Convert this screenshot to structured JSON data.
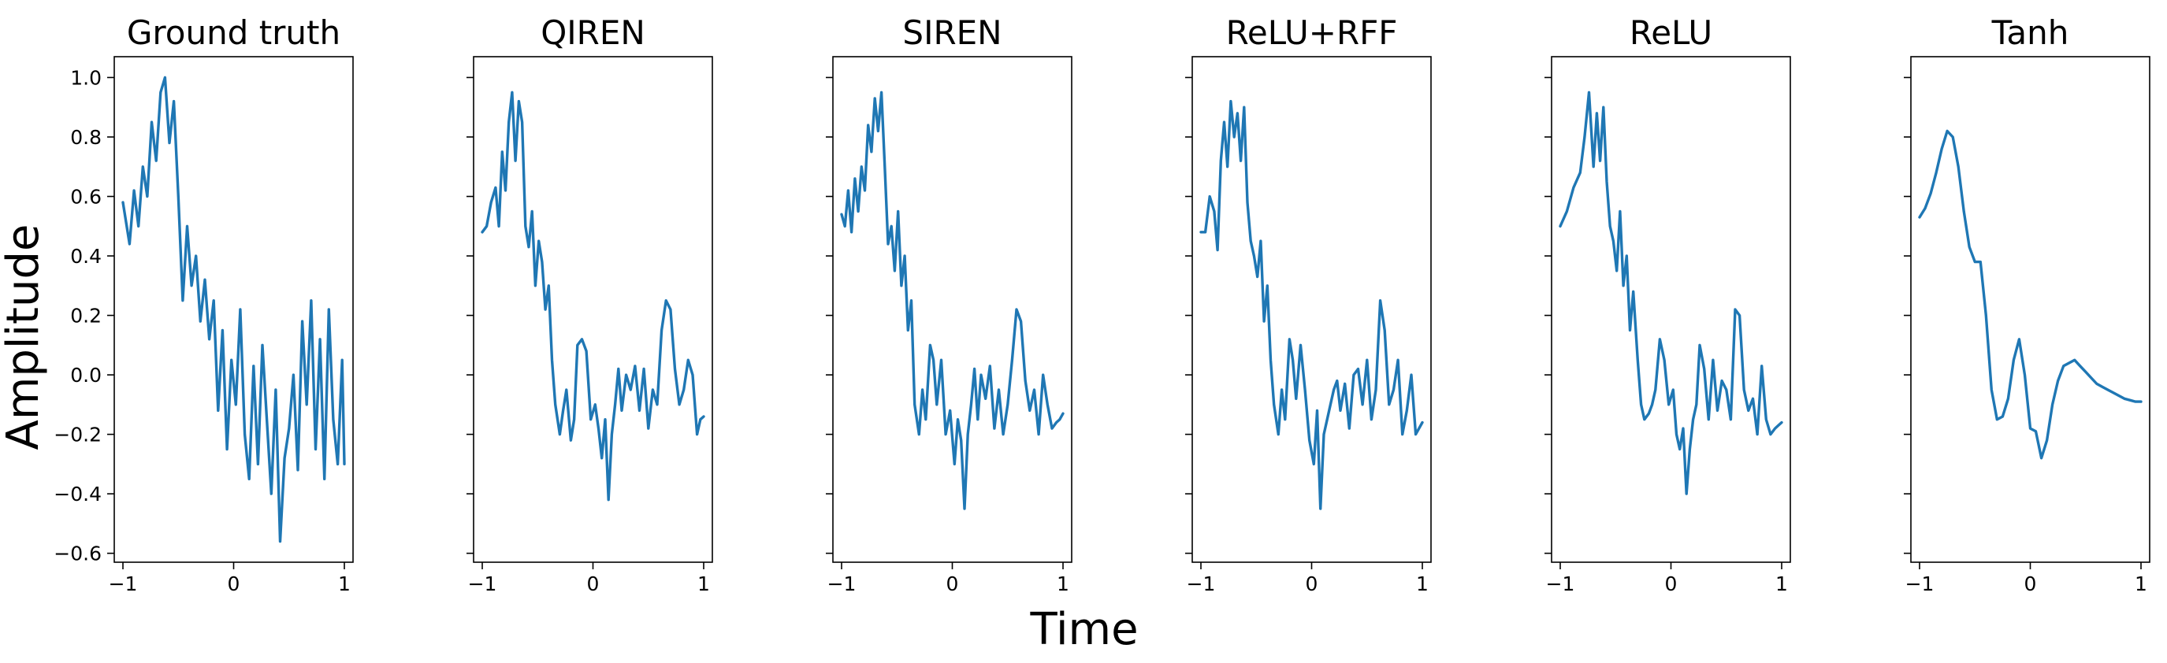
{
  "figure": {
    "xlabel": "Time",
    "ylabel": "Amplitude",
    "line_color": "#1f77b4"
  },
  "chart_data": [
    {
      "type": "line",
      "title": "Ground truth",
      "xlim": [
        -1,
        1
      ],
      "ylim": [
        -0.63,
        1.07
      ],
      "xticks": [
        -1,
        0,
        1
      ],
      "xtick_labels": [
        "−1",
        "0",
        "1"
      ],
      "yticks": [
        1.0,
        0.8,
        0.6,
        0.4,
        0.2,
        0.0,
        -0.2,
        -0.4,
        -0.6
      ],
      "ytick_labels": [
        "1.0",
        "0.8",
        "0.6",
        "0.4",
        "0.2",
        "0.0",
        "−0.2",
        "−0.4",
        "−0.6"
      ],
      "x": [
        -1.0,
        -0.94,
        -0.9,
        -0.86,
        -0.82,
        -0.78,
        -0.74,
        -0.7,
        -0.66,
        -0.62,
        -0.58,
        -0.54,
        -0.5,
        -0.46,
        -0.42,
        -0.38,
        -0.34,
        -0.3,
        -0.26,
        -0.22,
        -0.18,
        -0.14,
        -0.1,
        -0.06,
        -0.02,
        0.02,
        0.06,
        0.1,
        0.14,
        0.18,
        0.22,
        0.26,
        0.3,
        0.34,
        0.38,
        0.42,
        0.46,
        0.5,
        0.54,
        0.58,
        0.62,
        0.66,
        0.7,
        0.74,
        0.78,
        0.82,
        0.86,
        0.9,
        0.94,
        0.98,
        1.0
      ],
      "y": [
        0.58,
        0.44,
        0.62,
        0.5,
        0.7,
        0.6,
        0.85,
        0.72,
        0.95,
        1.0,
        0.78,
        0.92,
        0.6,
        0.25,
        0.5,
        0.3,
        0.4,
        0.18,
        0.32,
        0.12,
        0.25,
        -0.12,
        0.15,
        -0.25,
        0.05,
        -0.1,
        0.22,
        -0.2,
        -0.35,
        0.03,
        -0.3,
        0.1,
        -0.15,
        -0.4,
        -0.05,
        -0.56,
        -0.28,
        -0.18,
        0.0,
        -0.32,
        0.18,
        -0.1,
        0.25,
        -0.25,
        0.12,
        -0.35,
        0.22,
        -0.15,
        -0.3,
        0.05,
        -0.3
      ]
    },
    {
      "type": "line",
      "title": "QIREN",
      "xlim": [
        -1,
        1
      ],
      "ylim": [
        -0.63,
        1.07
      ],
      "xticks": [
        -1,
        0,
        1
      ],
      "xtick_labels": [
        "−1",
        "0",
        "1"
      ],
      "yticks": [
        1.0,
        0.8,
        0.6,
        0.4,
        0.2,
        0.0,
        -0.2,
        -0.4,
        -0.6
      ],
      "x": [
        -1.0,
        -0.96,
        -0.92,
        -0.88,
        -0.85,
        -0.82,
        -0.79,
        -0.76,
        -0.73,
        -0.7,
        -0.67,
        -0.64,
        -0.61,
        -0.58,
        -0.55,
        -0.52,
        -0.49,
        -0.46,
        -0.43,
        -0.4,
        -0.37,
        -0.34,
        -0.3,
        -0.27,
        -0.24,
        -0.2,
        -0.17,
        -0.14,
        -0.1,
        -0.06,
        -0.02,
        0.02,
        0.05,
        0.08,
        0.11,
        0.14,
        0.17,
        0.2,
        0.23,
        0.26,
        0.3,
        0.34,
        0.38,
        0.42,
        0.46,
        0.5,
        0.54,
        0.58,
        0.62,
        0.66,
        0.7,
        0.74,
        0.78,
        0.82,
        0.86,
        0.9,
        0.94,
        0.97,
        1.0
      ],
      "y": [
        0.48,
        0.5,
        0.58,
        0.63,
        0.5,
        0.75,
        0.62,
        0.85,
        0.95,
        0.72,
        0.92,
        0.85,
        0.5,
        0.43,
        0.55,
        0.3,
        0.45,
        0.38,
        0.22,
        0.3,
        0.05,
        -0.1,
        -0.2,
        -0.12,
        -0.05,
        -0.22,
        -0.15,
        0.1,
        0.12,
        0.08,
        -0.15,
        -0.1,
        -0.18,
        -0.28,
        -0.15,
        -0.42,
        -0.2,
        -0.1,
        0.02,
        -0.12,
        0.0,
        -0.05,
        0.03,
        -0.12,
        0.02,
        -0.18,
        -0.05,
        -0.1,
        0.15,
        0.25,
        0.22,
        0.02,
        -0.1,
        -0.05,
        0.05,
        0.0,
        -0.2,
        -0.15,
        -0.14
      ]
    },
    {
      "type": "line",
      "title": "SIREN",
      "xlim": [
        -1,
        1
      ],
      "ylim": [
        -0.63,
        1.07
      ],
      "xticks": [
        -1,
        0,
        1
      ],
      "xtick_labels": [
        "−1",
        "0",
        "1"
      ],
      "yticks": [
        1.0,
        0.8,
        0.6,
        0.4,
        0.2,
        0.0,
        -0.2,
        -0.4,
        -0.6
      ],
      "x": [
        -1.0,
        -0.97,
        -0.94,
        -0.91,
        -0.88,
        -0.85,
        -0.82,
        -0.79,
        -0.76,
        -0.73,
        -0.7,
        -0.67,
        -0.64,
        -0.61,
        -0.58,
        -0.55,
        -0.52,
        -0.49,
        -0.46,
        -0.43,
        -0.4,
        -0.37,
        -0.34,
        -0.3,
        -0.27,
        -0.24,
        -0.2,
        -0.17,
        -0.14,
        -0.1,
        -0.06,
        -0.02,
        0.02,
        0.05,
        0.08,
        0.11,
        0.14,
        0.17,
        0.2,
        0.23,
        0.26,
        0.3,
        0.34,
        0.38,
        0.42,
        0.46,
        0.5,
        0.54,
        0.58,
        0.62,
        0.66,
        0.7,
        0.74,
        0.78,
        0.82,
        0.86,
        0.9,
        0.94,
        0.97,
        1.0
      ],
      "y": [
        0.54,
        0.5,
        0.62,
        0.48,
        0.66,
        0.55,
        0.7,
        0.62,
        0.84,
        0.75,
        0.93,
        0.82,
        0.95,
        0.7,
        0.44,
        0.5,
        0.35,
        0.55,
        0.3,
        0.4,
        0.15,
        0.25,
        -0.1,
        -0.2,
        -0.05,
        -0.15,
        0.1,
        0.05,
        -0.1,
        0.05,
        -0.2,
        -0.12,
        -0.3,
        -0.15,
        -0.22,
        -0.45,
        -0.2,
        -0.1,
        0.02,
        -0.15,
        0.0,
        -0.08,
        0.03,
        -0.18,
        -0.05,
        -0.2,
        -0.1,
        0.05,
        0.22,
        0.18,
        -0.02,
        -0.12,
        -0.05,
        -0.2,
        0.0,
        -0.1,
        -0.18,
        -0.16,
        -0.15,
        -0.13
      ]
    },
    {
      "type": "line",
      "title": "ReLU+RFF",
      "xlim": [
        -1,
        1
      ],
      "ylim": [
        -0.63,
        1.07
      ],
      "xticks": [
        -1,
        0,
        1
      ],
      "xtick_labels": [
        "−1",
        "0",
        "1"
      ],
      "yticks": [
        1.0,
        0.8,
        0.6,
        0.4,
        0.2,
        0.0,
        -0.2,
        -0.4,
        -0.6
      ],
      "x": [
        -1.0,
        -0.96,
        -0.92,
        -0.88,
        -0.85,
        -0.82,
        -0.79,
        -0.76,
        -0.73,
        -0.7,
        -0.67,
        -0.64,
        -0.61,
        -0.58,
        -0.55,
        -0.52,
        -0.49,
        -0.46,
        -0.43,
        -0.4,
        -0.37,
        -0.34,
        -0.3,
        -0.27,
        -0.24,
        -0.2,
        -0.17,
        -0.14,
        -0.1,
        -0.06,
        -0.02,
        0.02,
        0.05,
        0.08,
        0.11,
        0.14,
        0.17,
        0.2,
        0.23,
        0.26,
        0.3,
        0.34,
        0.38,
        0.42,
        0.46,
        0.5,
        0.54,
        0.58,
        0.62,
        0.66,
        0.7,
        0.74,
        0.78,
        0.82,
        0.86,
        0.9,
        0.94,
        0.97,
        1.0
      ],
      "y": [
        0.48,
        0.48,
        0.6,
        0.55,
        0.42,
        0.72,
        0.85,
        0.7,
        0.92,
        0.8,
        0.88,
        0.72,
        0.9,
        0.58,
        0.45,
        0.4,
        0.33,
        0.45,
        0.18,
        0.3,
        0.05,
        -0.1,
        -0.2,
        -0.05,
        -0.15,
        0.12,
        0.05,
        -0.08,
        0.1,
        -0.05,
        -0.22,
        -0.3,
        -0.12,
        -0.45,
        -0.2,
        -0.15,
        -0.1,
        -0.05,
        -0.02,
        -0.12,
        -0.03,
        -0.18,
        0.0,
        0.02,
        -0.1,
        0.05,
        -0.15,
        -0.05,
        0.25,
        0.15,
        -0.1,
        -0.05,
        0.05,
        -0.2,
        -0.12,
        0.0,
        -0.2,
        -0.18,
        -0.16
      ]
    },
    {
      "type": "line",
      "title": "ReLU",
      "xlim": [
        -1,
        1
      ],
      "ylim": [
        -0.63,
        1.07
      ],
      "xticks": [
        -1,
        0,
        1
      ],
      "xtick_labels": [
        "−1",
        "0",
        "1"
      ],
      "yticks": [
        1.0,
        0.8,
        0.6,
        0.4,
        0.2,
        0.0,
        -0.2,
        -0.4,
        -0.6
      ],
      "x": [
        -1.0,
        -0.94,
        -0.88,
        -0.82,
        -0.78,
        -0.74,
        -0.7,
        -0.67,
        -0.64,
        -0.61,
        -0.58,
        -0.55,
        -0.52,
        -0.49,
        -0.46,
        -0.43,
        -0.4,
        -0.37,
        -0.34,
        -0.3,
        -0.27,
        -0.24,
        -0.2,
        -0.17,
        -0.14,
        -0.1,
        -0.06,
        -0.02,
        0.02,
        0.05,
        0.08,
        0.11,
        0.14,
        0.17,
        0.2,
        0.23,
        0.26,
        0.3,
        0.34,
        0.38,
        0.42,
        0.46,
        0.5,
        0.54,
        0.58,
        0.62,
        0.66,
        0.7,
        0.74,
        0.78,
        0.82,
        0.86,
        0.9,
        0.94,
        0.97,
        1.0
      ],
      "y": [
        0.5,
        0.55,
        0.63,
        0.68,
        0.8,
        0.95,
        0.7,
        0.88,
        0.72,
        0.9,
        0.65,
        0.5,
        0.45,
        0.35,
        0.55,
        0.3,
        0.4,
        0.15,
        0.28,
        0.05,
        -0.1,
        -0.15,
        -0.13,
        -0.1,
        -0.05,
        0.12,
        0.05,
        -0.1,
        -0.05,
        -0.2,
        -0.25,
        -0.18,
        -0.4,
        -0.25,
        -0.15,
        -0.1,
        0.1,
        0.02,
        -0.15,
        0.05,
        -0.12,
        -0.02,
        -0.05,
        -0.15,
        0.22,
        0.2,
        -0.05,
        -0.12,
        -0.08,
        -0.2,
        0.03,
        -0.15,
        -0.2,
        -0.18,
        -0.17,
        -0.16
      ]
    },
    {
      "type": "line",
      "title": "Tanh",
      "xlim": [
        -1,
        1
      ],
      "ylim": [
        -0.63,
        1.07
      ],
      "xticks": [
        -1,
        0,
        1
      ],
      "xtick_labels": [
        "−1",
        "0",
        "1"
      ],
      "yticks": [
        1.0,
        0.8,
        0.6,
        0.4,
        0.2,
        0.0,
        -0.2,
        -0.4,
        -0.6
      ],
      "x": [
        -1.0,
        -0.95,
        -0.9,
        -0.85,
        -0.8,
        -0.75,
        -0.7,
        -0.65,
        -0.6,
        -0.55,
        -0.5,
        -0.45,
        -0.4,
        -0.35,
        -0.3,
        -0.25,
        -0.2,
        -0.15,
        -0.1,
        -0.05,
        0.0,
        0.05,
        0.1,
        0.15,
        0.2,
        0.25,
        0.3,
        0.35,
        0.4,
        0.45,
        0.5,
        0.55,
        0.6,
        0.65,
        0.7,
        0.75,
        0.8,
        0.85,
        0.9,
        0.95,
        1.0
      ],
      "y": [
        0.53,
        0.56,
        0.61,
        0.68,
        0.76,
        0.82,
        0.8,
        0.7,
        0.55,
        0.43,
        0.38,
        0.38,
        0.2,
        -0.05,
        -0.15,
        -0.14,
        -0.08,
        0.05,
        0.12,
        0.0,
        -0.18,
        -0.19,
        -0.28,
        -0.22,
        -0.1,
        -0.02,
        0.03,
        0.04,
        0.05,
        0.03,
        0.01,
        -0.01,
        -0.03,
        -0.04,
        -0.05,
        -0.06,
        -0.07,
        -0.08,
        -0.085,
        -0.09,
        -0.09
      ]
    }
  ]
}
